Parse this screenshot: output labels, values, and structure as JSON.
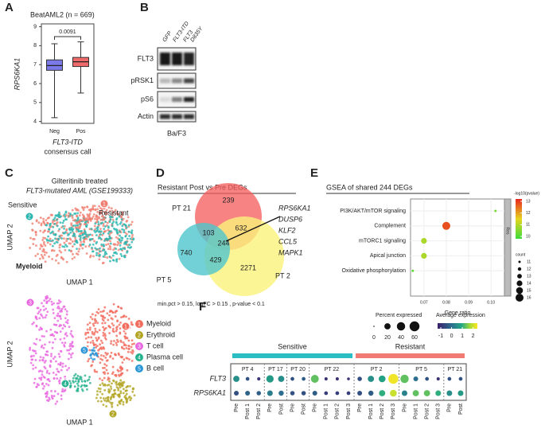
{
  "panel_labels": [
    "A",
    "B",
    "C",
    "D",
    "E",
    "F"
  ],
  "chart_data": [
    {
      "type": "box",
      "title": "BeatAML2 (n = 669)",
      "ylabel": "RPS6KA1",
      "ylim": [
        3.9,
        9.15
      ],
      "yticks": [
        4,
        5,
        6,
        7,
        8,
        9
      ],
      "categories": [
        "Neg",
        "Pos"
      ],
      "colors": [
        "#7b78e8",
        "#ef6b6b"
      ],
      "whisker_low": [
        4.2,
        5.5
      ],
      "q1": [
        6.7,
        6.9
      ],
      "median": [
        6.95,
        7.15
      ],
      "q3": [
        7.25,
        7.38
      ],
      "whisker_high": [
        8.1,
        8.2
      ],
      "annotation": "0.0091",
      "xlabel": [
        "FLT3-ITD",
        "consensus call"
      ]
    },
    {
      "type": "dot",
      "title": "GSEA of shared 244 DEGs",
      "categories": [
        "PI3K/AKT/mTOR signaling",
        "Complement",
        "mTORC1 signaling",
        "Apical junction",
        "Oxidative phosphorylation"
      ],
      "values": [
        0.102,
        0.08,
        0.07,
        0.07,
        0.065
      ],
      "counts": [
        11,
        16,
        14,
        14,
        11
      ],
      "neglog10p": [
        10.4,
        12.8,
        10.9,
        10.9,
        10.1
      ],
      "xlim": [
        0.064,
        0.106
      ],
      "xticks": [
        0.07,
        0.08,
        0.09,
        {
          "value": 0.1,
          "label": "0.10"
        }
      ],
      "xlabel": "Gene ratio",
      "facet": "Res",
      "color_title": "-log10(pvalue)",
      "color_lim": [
        9.8,
        13.2
      ],
      "color_ticks": [
        10,
        11,
        12,
        13
      ],
      "size_title": "count",
      "size_ticks": [
        11,
        12,
        13,
        14,
        15,
        16
      ]
    },
    {
      "type": "dotplot",
      "groups": [
        {
          "name": "Sensitive",
          "color": "#2bbdc1",
          "patients": [
            {
              "name": "PT 4",
              "samples": [
                "Pre",
                "Post 1",
                "Post 2"
              ]
            },
            {
              "name": "PT 17",
              "samples": [
                "Pre",
                "Post"
              ]
            },
            {
              "name": "PT 20",
              "samples": [
                "Pre",
                "Post"
              ]
            },
            {
              "name": "PT 22",
              "samples": [
                "Pre",
                "Post 1",
                "Post 2",
                "Post 3"
              ]
            }
          ]
        },
        {
          "name": "Resistant",
          "color": "#ef7b73",
          "patients": [
            {
              "name": "PT 2",
              "samples": [
                "Pre",
                "Post 1",
                "Post 2",
                "Post 3"
              ]
            },
            {
              "name": "PT 5",
              "samples": [
                "Pre",
                "Post 1",
                "Post 2",
                "Post 3"
              ]
            },
            {
              "name": "PT 21",
              "samples": [
                "Pre",
                "Post"
              ]
            }
          ]
        }
      ],
      "genes": [
        {
          "name": "FLT3",
          "pct": [
            20,
            5,
            3,
            30,
            20,
            5,
            5,
            35,
            3,
            3,
            2,
            8,
            20,
            25,
            60,
            40,
            10,
            5,
            3,
            5,
            5
          ],
          "avg": [
            0.5,
            -0.5,
            -1,
            0.7,
            0.5,
            -0.5,
            -0.3,
            1.3,
            -1,
            -1,
            -1,
            -0.5,
            0.5,
            0.8,
            2.3,
            1.3,
            0,
            -0.5,
            -1,
            -0.5,
            -0.5
          ]
        },
        {
          "name": "RPS6KA1",
          "pct": [
            10,
            10,
            8,
            15,
            12,
            8,
            8,
            10,
            5,
            5,
            5,
            10,
            12,
            20,
            25,
            15,
            20,
            20,
            15,
            15,
            15
          ],
          "avg": [
            -0.5,
            -0.2,
            -0.3,
            0.2,
            0,
            -0.5,
            -0.5,
            -0.3,
            -0.8,
            -0.8,
            -0.8,
            -0.5,
            -0.3,
            1,
            2,
            0.3,
            1.3,
            1.3,
            1,
            0.5,
            0.7
          ]
        }
      ],
      "pct_title": "Percent expressed",
      "pct_ticks": [
        0,
        20,
        40,
        60
      ],
      "avg_title": "Average expression",
      "avg_lim": [
        -1.3,
        2.4
      ],
      "avg_ticks": [
        -1,
        0,
        1,
        2
      ]
    }
  ],
  "panel_b": {
    "lanes": [
      [
        "GFP"
      ],
      [
        "FLT3-ITD"
      ],
      [
        "FLT3",
        "D835Y"
      ]
    ],
    "rows": [
      "FLT3",
      "pRSK1",
      "pS6",
      "Actin"
    ],
    "cell_line": "Ba/F3"
  },
  "panel_c": {
    "title": [
      "Gilteritinib treated",
      "FLT3-mutated AML (GSE199333)"
    ],
    "sensitive": "Sensitive",
    "resistant": "Resistant",
    "marker_1": 1,
    "marker_2": 2,
    "lineage": "Myeloid",
    "xlabel": "UMAP 1",
    "ylabel": "UMAP 2",
    "legend": [
      {
        "n": 1,
        "label": "Myeloid"
      },
      {
        "n": 2,
        "label": "Erythroid"
      },
      {
        "n": 3,
        "label": "T cell"
      },
      {
        "n": 4,
        "label": "Plasma cell"
      },
      {
        "n": 5,
        "label": "B cell"
      }
    ]
  },
  "panel_d": {
    "title": "Resistant Post vs Pre DEGs",
    "sets": [
      "PT 21",
      "PT 5",
      "PT 2"
    ],
    "counts": [
      239,
      632,
      103,
      244,
      740,
      429,
      2271
    ],
    "genes": [
      "RPS6KA1",
      "DUSP6",
      "KLF2",
      "CCL5",
      "MAPK1"
    ],
    "footer": "min.pct > 0.15, logFC > 0.15 , p-value < 0.1"
  }
}
